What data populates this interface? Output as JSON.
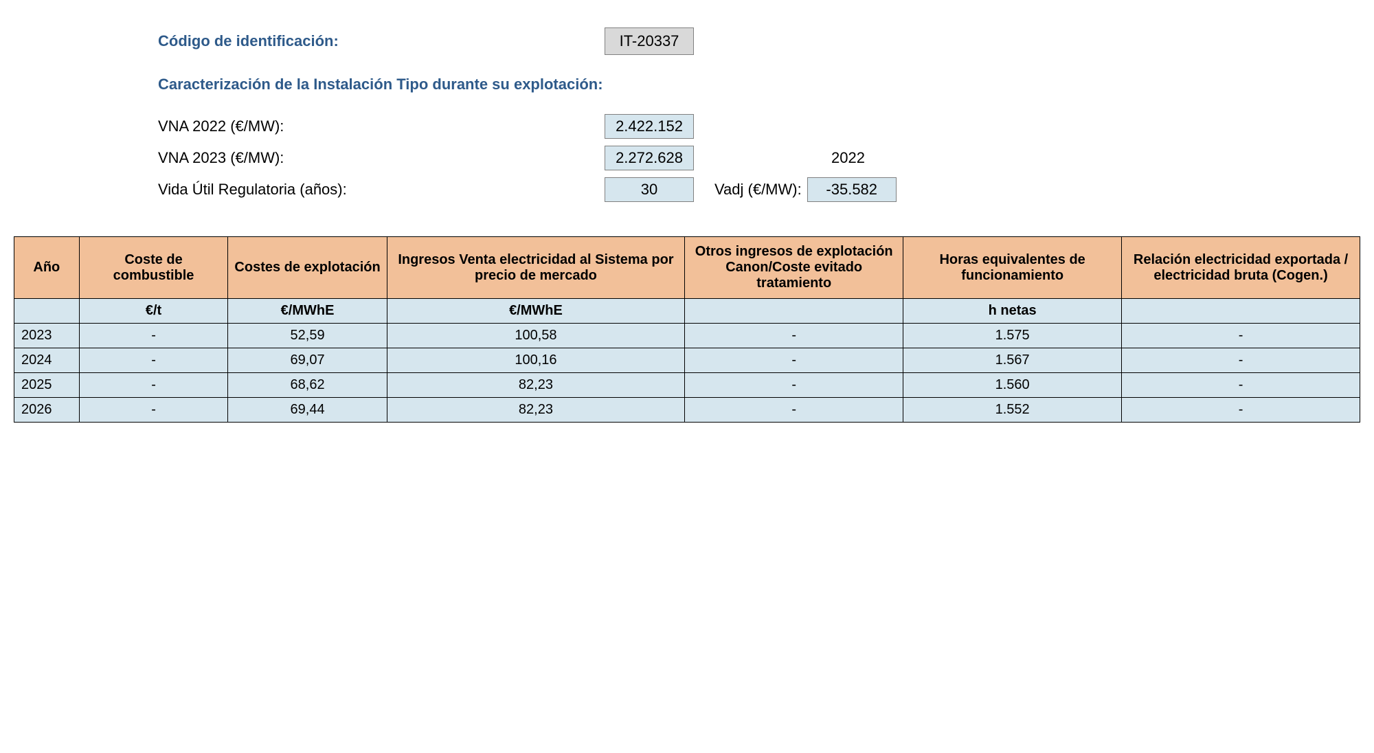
{
  "header": {
    "id_label": "Código de identificación:",
    "id_value": "IT-20337",
    "section_title": "Caracterización de la Instalación Tipo durante su explotación:",
    "vna2022_label": "VNA 2022 (€/MW):",
    "vna2022_value": "2.422.152",
    "vna2023_label": "VNA 2023 (€/MW):",
    "vna2023_value": "2.272.628",
    "vida_label": "Vida Útil Regulatoria (años):",
    "vida_value": "30",
    "year_plain": "2022",
    "vadj_label": "Vadj (€/MW):",
    "vadj_value": "-35.582"
  },
  "table": {
    "columns": [
      "Año",
      "Coste de combustible",
      "Costes de explotación",
      "Ingresos Venta electricidad al Sistema por precio de mercado",
      "Otros ingresos de explotación Canon/Coste evitado tratamiento",
      "Horas equivalentes de funcionamiento",
      "Relación electricidad exportada / electricidad bruta\n(Cogen.)"
    ],
    "units": [
      "",
      "€/t",
      "€/MWhE",
      "€/MWhE",
      "",
      "h netas",
      ""
    ],
    "rows": [
      [
        "2023",
        "-",
        "52,59",
        "100,58",
        "-",
        "1.575",
        "-"
      ],
      [
        "2024",
        "-",
        "69,07",
        "100,16",
        "-",
        "1.567",
        "-"
      ],
      [
        "2025",
        "-",
        "68,62",
        "82,23",
        "-",
        "1.560",
        "-"
      ],
      [
        "2026",
        "-",
        "69,44",
        "82,23",
        "-",
        "1.552",
        "-"
      ]
    ]
  },
  "colors": {
    "header_text": "#2e5a8a",
    "table_header_bg": "#f2c099",
    "table_cell_bg": "#d6e6ee",
    "gray_box_bg": "#d9d9d9",
    "border": "#000000"
  }
}
